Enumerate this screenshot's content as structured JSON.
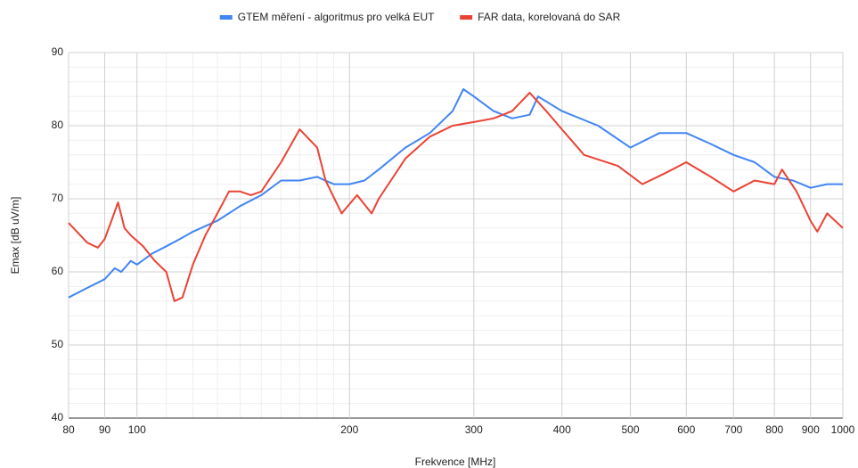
{
  "chart_data": {
    "type": "line",
    "x_label": "Frekvence [MHz]",
    "y_label": "Emax [dB uV/m]",
    "log_x": true,
    "grid": true,
    "legend": "top",
    "xlim": [
      80,
      1000
    ],
    "xticks": [
      80,
      90,
      100,
      200,
      300,
      400,
      500,
      600,
      700,
      800,
      900,
      1000
    ],
    "xminor": [
      110,
      120,
      130,
      140,
      150,
      160,
      170,
      180,
      190
    ],
    "ylim": [
      40,
      90
    ],
    "yticks": [
      40,
      50,
      60,
      70,
      80,
      90
    ],
    "yminor": [
      42,
      44,
      46,
      48,
      52,
      54,
      56,
      58,
      62,
      64,
      66,
      68,
      72,
      74,
      76,
      78,
      82,
      84,
      86,
      88
    ],
    "series": [
      {
        "name": "GTEM měření - algoritmus pro velká EUT",
        "color": "#4285f4",
        "x": [
          80,
          85,
          90,
          93,
          95,
          98,
          100,
          105,
          110,
          115,
          120,
          130,
          140,
          150,
          160,
          170,
          180,
          190,
          200,
          210,
          220,
          240,
          260,
          280,
          290,
          300,
          320,
          340,
          360,
          370,
          400,
          450,
          500,
          550,
          600,
          650,
          700,
          750,
          800,
          850,
          900,
          950,
          1000
        ],
        "values": [
          56.5,
          57.8,
          59,
          60.5,
          60,
          61.5,
          61,
          62.5,
          63.5,
          64.5,
          65.5,
          67,
          69,
          70.5,
          72.5,
          72.5,
          73,
          72,
          72,
          72.5,
          74,
          77,
          79,
          82,
          85,
          84,
          82,
          81,
          81.5,
          84,
          82,
          80,
          77,
          79,
          79,
          77.5,
          76,
          75,
          73,
          72.5,
          71.5,
          72,
          72
        ]
      },
      {
        "name": "FAR data, korelovaná do SAR",
        "color": "#ea4335",
        "x": [
          80,
          85,
          88,
          90,
          92,
          94,
          96,
          98,
          102,
          106,
          110,
          113,
          116,
          120,
          125,
          130,
          135,
          140,
          145,
          150,
          160,
          170,
          180,
          185,
          195,
          205,
          215,
          220,
          240,
          260,
          280,
          300,
          320,
          340,
          360,
          380,
          400,
          430,
          480,
          520,
          560,
          600,
          650,
          700,
          750,
          800,
          820,
          860,
          900,
          920,
          950,
          1000
        ],
        "values": [
          66.7,
          64,
          63.3,
          64.5,
          67,
          69.5,
          66,
          65,
          63.5,
          61.5,
          60,
          56,
          56.5,
          61,
          65,
          68,
          71,
          71,
          70.5,
          71,
          75,
          79.5,
          77,
          72.5,
          68,
          70.5,
          68,
          70,
          75.5,
          78.5,
          80,
          80.5,
          81,
          82,
          84.5,
          82,
          79.5,
          76,
          74.5,
          72,
          73.5,
          75,
          73,
          71,
          72.5,
          72,
          74,
          71,
          67,
          65.5,
          68,
          66
        ]
      }
    ]
  }
}
